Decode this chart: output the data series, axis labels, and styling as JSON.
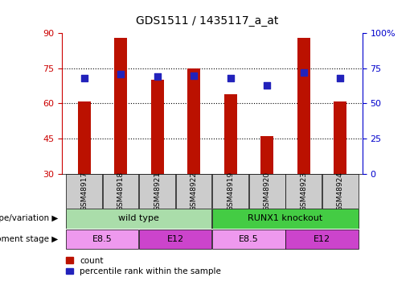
{
  "title": "GDS1511 / 1435117_a_at",
  "samples": [
    "GSM48917",
    "GSM48918",
    "GSM48921",
    "GSM48922",
    "GSM48919",
    "GSM48920",
    "GSM48923",
    "GSM48924"
  ],
  "counts": [
    61,
    88,
    70,
    75,
    64,
    46,
    88,
    61
  ],
  "percentile_ranks": [
    68,
    71,
    69,
    70,
    68,
    63,
    72,
    68
  ],
  "ylim_left": [
    30,
    90
  ],
  "ylim_right": [
    0,
    100
  ],
  "yticks_left": [
    30,
    45,
    60,
    75,
    90
  ],
  "yticks_right": [
    0,
    25,
    50,
    75,
    100
  ],
  "bar_color": "#bb1100",
  "dot_color": "#2222bb",
  "bar_bottom": 30,
  "genotype_groups": [
    {
      "label": "wild type",
      "start": 0,
      "end": 4,
      "color": "#aaeea a"
    },
    {
      "label": "RUNX1 knockout",
      "start": 4,
      "end": 8,
      "color": "#55cc55"
    }
  ],
  "dev_stage_groups": [
    {
      "label": "E8.5",
      "start": 0,
      "end": 2,
      "color": "#ee88ee"
    },
    {
      "label": "E12",
      "start": 2,
      "end": 4,
      "color": "#cc44cc"
    },
    {
      "label": "E8.5",
      "start": 4,
      "end": 6,
      "color": "#ee88ee"
    },
    {
      "label": "E12",
      "start": 6,
      "end": 8,
      "color": "#cc44cc"
    }
  ],
  "legend_count_label": "count",
  "legend_pct_label": "percentile rank within the sample",
  "left_tick_color": "#cc0000",
  "right_tick_color": "#0000cc",
  "bar_width": 0.35,
  "dot_size": 30,
  "sample_box_color": "#cccccc",
  "geno_wt_color": "#aaddaa",
  "geno_ko_color": "#44cc44",
  "dev_light_color": "#ee99ee",
  "dev_dark_color": "#cc44cc"
}
